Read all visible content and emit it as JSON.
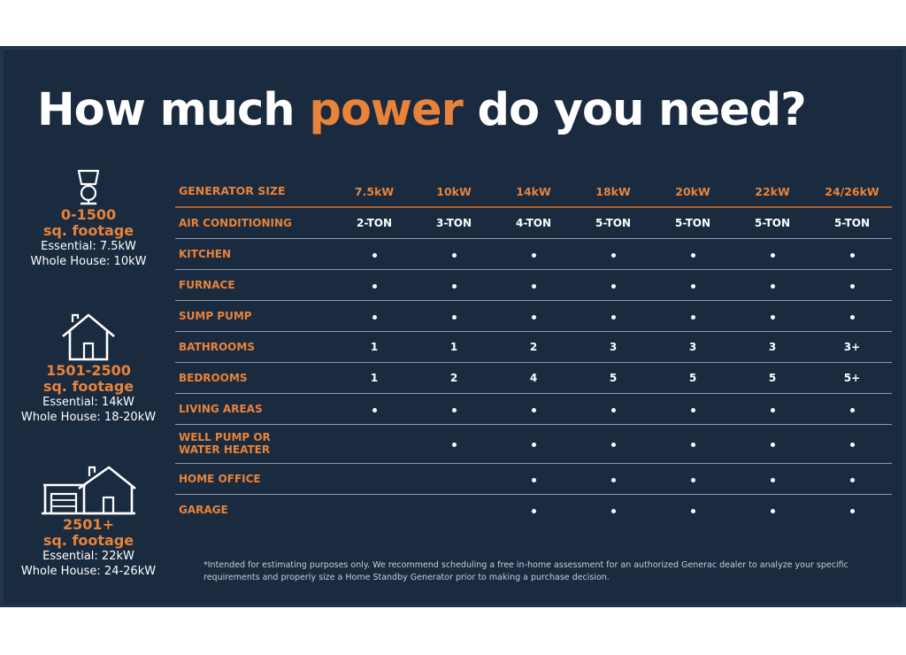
{
  "title": {
    "before": "How much ",
    "highlight": "power",
    "after": " do you need?"
  },
  "tiers": [
    {
      "icon": "lamp-icon",
      "sqft_line1": "0-1500",
      "sqft_line2": "sq. footage",
      "essential": "Essential: 7.5kW",
      "whole_house": "Whole House: 10kW"
    },
    {
      "icon": "house-icon",
      "sqft_line1": "1501-2500",
      "sqft_line2": "sq. footage",
      "essential": "Essential: 14kW",
      "whole_house": "Whole House: 18-20kW"
    },
    {
      "icon": "house-garage-icon",
      "sqft_line1": "2501+",
      "sqft_line2": "sq. footage",
      "essential": "Essential: 22kW",
      "whole_house": "Whole House: 24-26kW"
    }
  ],
  "table": {
    "header_label": "GENERATOR SIZE",
    "sizes": [
      "7.5kW",
      "10kW",
      "14kW",
      "18kW",
      "20kW",
      "22kW",
      "24/26kW"
    ],
    "rows": [
      {
        "label": "AIR CONDITIONING",
        "cells": [
          "2-TON",
          "3-TON",
          "4-TON",
          "5-TON",
          "5-TON",
          "5-TON",
          "5-TON"
        ]
      },
      {
        "label": "KITCHEN",
        "cells": [
          "•",
          "•",
          "•",
          "•",
          "•",
          "•",
          "•"
        ]
      },
      {
        "label": "FURNACE",
        "cells": [
          "•",
          "•",
          "•",
          "•",
          "•",
          "•",
          "•"
        ]
      },
      {
        "label": "SUMP PUMP",
        "cells": [
          "•",
          "•",
          "•",
          "•",
          "•",
          "•",
          "•"
        ]
      },
      {
        "label": "BATHROOMS",
        "cells": [
          "1",
          "1",
          "2",
          "3",
          "3",
          "3",
          "3+"
        ]
      },
      {
        "label": "BEDROOMS",
        "cells": [
          "1",
          "2",
          "4",
          "5",
          "5",
          "5",
          "5+"
        ]
      },
      {
        "label": "LIVING AREAS",
        "cells": [
          "•",
          "•",
          "•",
          "•",
          "•",
          "•",
          "•"
        ]
      },
      {
        "label_line1": "WELL PUMP OR",
        "label_line2": "WATER HEATER",
        "cells": [
          "",
          "•",
          "•",
          "•",
          "•",
          "•",
          "•"
        ]
      },
      {
        "label": "HOME OFFICE",
        "cells": [
          "",
          "",
          "•",
          "•",
          "•",
          "•",
          "•"
        ]
      },
      {
        "label": "GARAGE",
        "cells": [
          "",
          "",
          "•",
          "•",
          "•",
          "•",
          "•"
        ]
      }
    ]
  },
  "footnote": "*Intended for estimating purposes only. We recommend scheduling a free in-home assessment for an authorized Generac dealer to analyze your specific requirements and properly size a Home Standby Generator prior to making a purchase decision.",
  "colors": {
    "background": "#1a2a3f",
    "accent": "#e8833a",
    "text": "#ffffff",
    "rule": "#8e9bab"
  }
}
